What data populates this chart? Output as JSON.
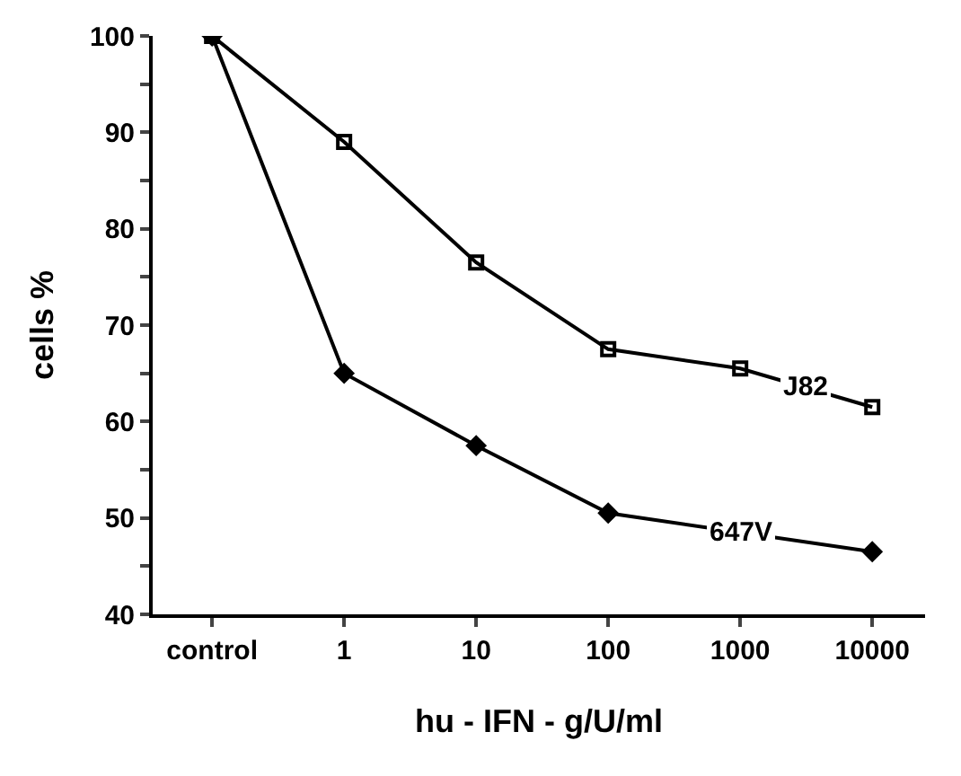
{
  "chart_data": {
    "type": "line",
    "xlabel": "hu - IFN - g/U/ml",
    "ylabel": "cells %",
    "categories": [
      "control",
      "1",
      "10",
      "100",
      "1000",
      "10000"
    ],
    "series": [
      {
        "name": "J82",
        "color": "#000000",
        "marker": "square",
        "values": [
          100,
          89,
          76.5,
          67.5,
          65.5,
          61.5
        ]
      },
      {
        "name": "647V",
        "color": "#000000",
        "marker": "diamond",
        "values": [
          100,
          65,
          57.5,
          50.5,
          null,
          46.5
        ]
      }
    ],
    "ylim": [
      40,
      100
    ],
    "yticks": [
      40,
      {
        "value": 45,
        "label": null
      },
      50,
      {
        "value": 55,
        "label": null
      },
      60,
      {
        "value": 65,
        "label": null
      },
      70,
      {
        "value": 75,
        "label": null
      },
      80,
      {
        "value": 85,
        "label": null
      },
      90,
      {
        "value": 95,
        "label": null
      },
      100
    ],
    "legend": false,
    "line_style": "solid"
  }
}
